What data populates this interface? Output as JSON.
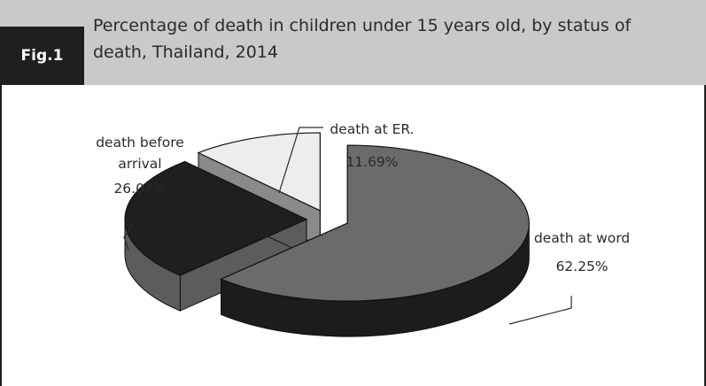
{
  "figure": {
    "badge": "Fig.1",
    "title_line1": "Percentage of death in children under 15 years old, by status of",
    "title_line2": "death, Thailand, 2014"
  },
  "colors": {
    "header_bg": "#c9c9c9",
    "badge_bg": "#1f1f1f",
    "slice_top": [
      "#6b6b6b",
      "#1f1f1f",
      "#ededed"
    ],
    "slice_side": [
      "#1c1c1c",
      "#5c5c5c",
      "#8a8a8a"
    ]
  },
  "chart_data": {
    "type": "pie",
    "title": "Percentage of death in children under 15 years old, by status of death, Thailand, 2014",
    "categories": [
      "death at word",
      "death before arrival",
      "death at ER."
    ],
    "values": [
      62.25,
      26.07,
      11.69
    ],
    "value_labels": [
      "62.25%",
      "26.07%",
      "11.69%"
    ],
    "label_lines": [
      [
        "death at word"
      ],
      [
        "death before",
        "arrival"
      ],
      [
        "death at ER."
      ]
    ],
    "style": "3d-exploded",
    "legend": "none"
  }
}
